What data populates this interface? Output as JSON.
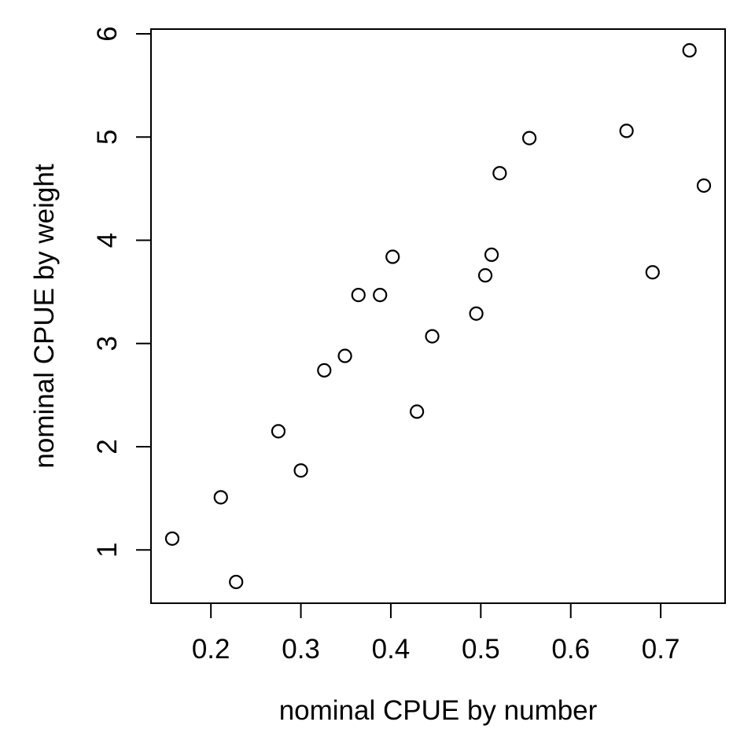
{
  "chart_data": {
    "type": "scatter",
    "title": "",
    "xlabel": "nominal CPUE by number",
    "ylabel": "nominal CPUE by weight",
    "xlim": [
      0.1334,
      0.7716
    ],
    "ylim": [
      0.484,
      6.046
    ],
    "x_ticks": [
      0.2,
      0.3,
      0.4,
      0.5,
      0.6,
      0.7
    ],
    "x_tick_labels": [
      "0.2",
      "0.3",
      "0.4",
      "0.5",
      "0.6",
      "0.7"
    ],
    "y_ticks": [
      1,
      2,
      3,
      4,
      5,
      6
    ],
    "y_tick_labels": [
      "1",
      "2",
      "3",
      "4",
      "5",
      "6"
    ],
    "grid": false,
    "legend": null,
    "marker": {
      "shape": "open-circle",
      "color": "#000000"
    },
    "axis_color": "#000000",
    "background": "#FFFFFF",
    "points": [
      {
        "x": 0.157,
        "y": 1.11
      },
      {
        "x": 0.211,
        "y": 1.51
      },
      {
        "x": 0.228,
        "y": 0.69
      },
      {
        "x": 0.275,
        "y": 2.15
      },
      {
        "x": 0.3,
        "y": 1.77
      },
      {
        "x": 0.326,
        "y": 2.74
      },
      {
        "x": 0.349,
        "y": 2.88
      },
      {
        "x": 0.364,
        "y": 3.47
      },
      {
        "x": 0.388,
        "y": 3.47
      },
      {
        "x": 0.402,
        "y": 3.84
      },
      {
        "x": 0.429,
        "y": 2.34
      },
      {
        "x": 0.446,
        "y": 3.07
      },
      {
        "x": 0.495,
        "y": 3.29
      },
      {
        "x": 0.505,
        "y": 3.66
      },
      {
        "x": 0.512,
        "y": 3.86
      },
      {
        "x": 0.521,
        "y": 4.65
      },
      {
        "x": 0.554,
        "y": 4.99
      },
      {
        "x": 0.662,
        "y": 5.06
      },
      {
        "x": 0.691,
        "y": 3.69
      },
      {
        "x": 0.732,
        "y": 5.84
      },
      {
        "x": 0.748,
        "y": 4.53
      }
    ]
  }
}
